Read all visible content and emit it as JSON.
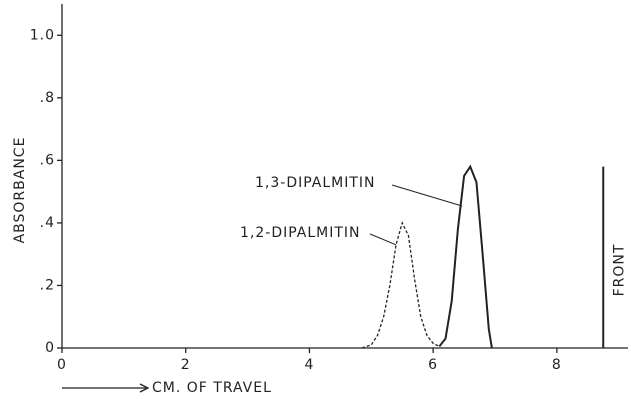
{
  "chart_data": {
    "type": "line",
    "y_label": "ABSORBANCE",
    "x_label": "CM. OF TRAVEL",
    "xlim": [
      0,
      9.15
    ],
    "xticks": [
      0,
      2,
      4,
      6,
      8
    ],
    "ylim": [
      0,
      1.1
    ],
    "yticks": [
      0,
      {
        "value": 0.2,
        "label": ".2"
      },
      {
        "value": 0.4,
        "label": ".4"
      },
      {
        "value": 0.6,
        "label": ".6"
      },
      {
        "value": 0.8,
        "label": ".8"
      },
      {
        "value": 1,
        "label": "1.0"
      }
    ],
    "series": [
      {
        "name": "1,2-DIPALMITIN",
        "color": "#222",
        "dashed": true,
        "x": [
          4.85,
          5.0,
          5.1,
          5.2,
          5.3,
          5.4,
          5.5,
          5.6,
          5.7,
          5.8,
          5.9,
          6.0,
          6.1
        ],
        "values": [
          0,
          0.01,
          0.04,
          0.1,
          0.2,
          0.33,
          0.4,
          0.36,
          0.22,
          0.1,
          0.04,
          0.015,
          0.005
        ]
      },
      {
        "name": "1,3-DIPALMITIN",
        "color": "#222",
        "dashed": false,
        "x": [
          6.1,
          6.2,
          6.3,
          6.4,
          6.5,
          6.6,
          6.7,
          6.8,
          6.9,
          6.95
        ],
        "values": [
          0.005,
          0.03,
          0.15,
          0.38,
          0.55,
          0.58,
          0.53,
          0.3,
          0.06,
          0
        ]
      }
    ],
    "front": {
      "label": "FRONT",
      "x": 8.75,
      "value": 0.58
    }
  }
}
